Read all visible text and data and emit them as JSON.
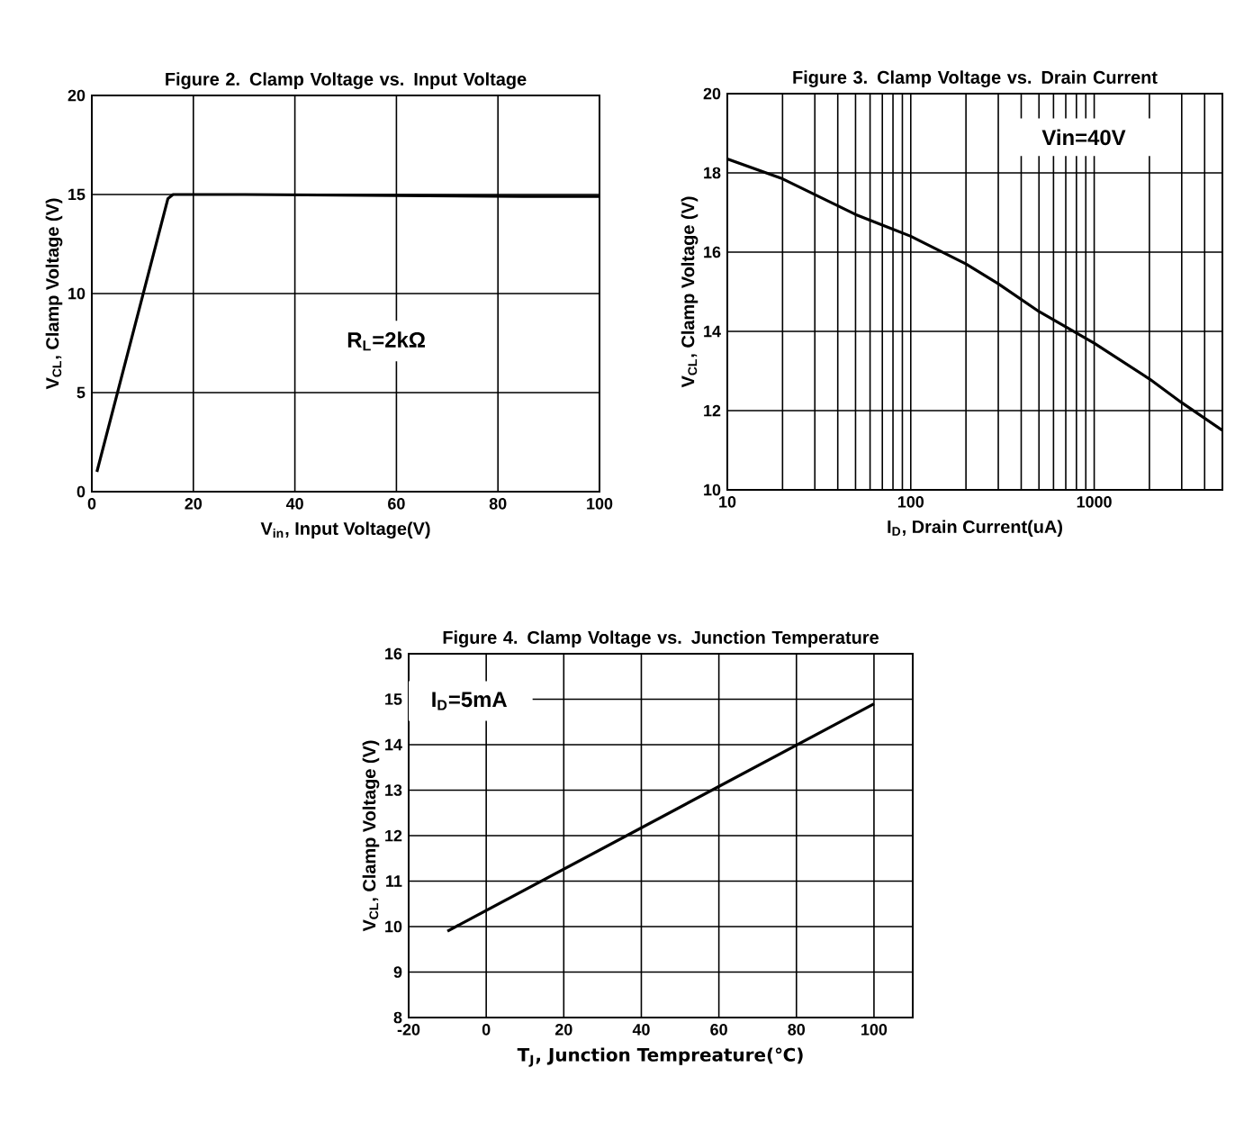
{
  "chart_data": [
    {
      "type": "line",
      "title": "Figure 2. Clamp Voltage vs. Input Voltage",
      "xlabel": "V$_{in}$, Input Voltage(V)",
      "ylabel": "V$_{CL}$, Clamp Voltage (V)",
      "annotations": [
        "R$_{L}$=2kΩ"
      ],
      "x": [
        1,
        15,
        16,
        30,
        60,
        85,
        100
      ],
      "series": [
        {
          "color": "#000000",
          "values": [
            1,
            14.8,
            15,
            15,
            14.95,
            14.9,
            14.9
          ]
        }
      ],
      "xlim": [
        0,
        100
      ],
      "ylim": [
        0,
        20
      ],
      "xticks": [
        0,
        20,
        40,
        60,
        80,
        100
      ],
      "yticks": [
        0,
        5,
        10,
        15,
        20
      ],
      "grid": true
    },
    {
      "type": "line",
      "title": "Figure 3. Clamp Voltage vs. Drain Current",
      "xlabel": "I$_{D}$, Drain Current(uA)",
      "ylabel": "V$_{CL}$, Clamp Voltage (V)",
      "annotations": [
        "Vin=40V"
      ],
      "x": [
        10,
        20,
        50,
        100,
        200,
        300,
        500,
        1000,
        2000,
        3000,
        5000
      ],
      "series": [
        {
          "color": "#000000",
          "values": [
            18.35,
            17.85,
            16.95,
            16.4,
            15.7,
            15.2,
            14.5,
            13.7,
            12.8,
            12.2,
            11.5
          ]
        }
      ],
      "log": "x",
      "xlim": [
        10,
        5000
      ],
      "ylim": [
        10,
        20
      ],
      "xticks": [
        10,
        100,
        1000
      ],
      "yticks": [
        10,
        12,
        14,
        16,
        18,
        20
      ],
      "grid": true
    },
    {
      "type": "line",
      "title": "Figure 4.  Clamp Voltage vs. Junction Temperature",
      "xlabel": "T$_{J}$, Junction Tempreature(℃)",
      "ylabel": "V$_{CL}$, Clamp Voltage (V)",
      "annotations": [
        "I$_{D}$=5mA"
      ],
      "x": [
        -10,
        100
      ],
      "series": [
        {
          "color": "#000000",
          "values": [
            9.9,
            14.9
          ]
        }
      ],
      "xlim": [
        -20,
        110
      ],
      "ylim": [
        8,
        16
      ],
      "xticks": [
        -20,
        0,
        20,
        40,
        60,
        80,
        100
      ],
      "yticks": [
        8,
        9,
        10,
        11,
        12,
        13,
        14,
        15,
        16
      ],
      "grid": true
    }
  ]
}
